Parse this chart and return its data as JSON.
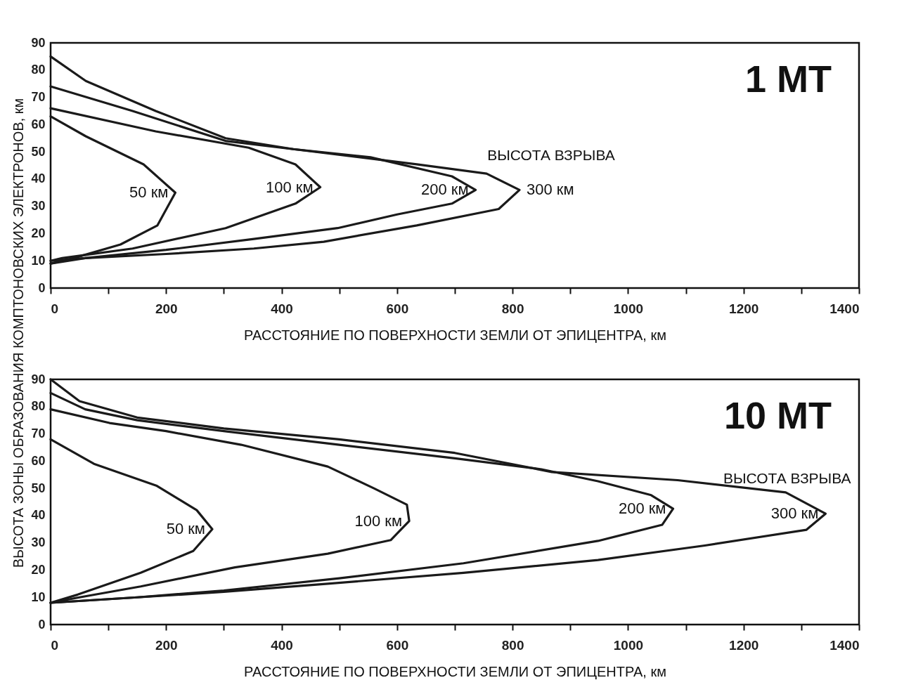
{
  "chart_data": [
    {
      "type": "line",
      "title": "1 МТ",
      "xlabel": "РАССТОЯНИЕ ПО ПОВЕРХНОСТИ ЗЕМЛИ ОТ ЭПИЦЕНТРА, км",
      "ylabel": "ВЫСОТА ЗОНЫ ОБРАЗОВАНИЯ КОМПТОНОВСКИХ ЭЛЕКТРОНОВ, км",
      "xlim": [
        0,
        1400
      ],
      "ylim": [
        0,
        90
      ],
      "xticks": [
        0,
        {
          "value": 100,
          "label": null
        },
        200,
        {
          "value": 300,
          "label": null
        },
        400,
        {
          "value": 500,
          "label": null
        },
        600,
        {
          "value": 700,
          "label": null
        },
        800,
        {
          "value": 900,
          "label": null
        },
        1000,
        {
          "value": 1100,
          "label": null
        },
        1200,
        {
          "value": 1300,
          "label": null
        },
        1400
      ],
      "yticks": [
        0,
        10,
        20,
        30,
        40,
        50,
        60,
        70,
        80,
        90
      ],
      "grid": false,
      "legend": false,
      "marker": "none",
      "line_style": "solid",
      "annotations": [
        "ВЫСОТА ВЗРЫВА"
      ],
      "series": [
        {
          "name": "50 км",
          "color": "#1a1a1a",
          "x": [
            0,
            61,
            161,
            216,
            185,
            121,
            40,
            0
          ],
          "values": [
            63,
            55.7,
            45.4,
            35,
            23,
            16,
            11,
            9
          ]
        },
        {
          "name": "100 км",
          "color": "#1a1a1a",
          "x": [
            0,
            182,
            343,
            424,
            467,
            424,
            303,
            142,
            20,
            0
          ],
          "values": [
            66,
            57.5,
            51.5,
            45.4,
            37,
            31,
            22,
            14.5,
            11,
            10
          ]
        },
        {
          "name": "200 км",
          "color": "#1a1a1a",
          "x": [
            0,
            142,
            303,
            420,
            554,
            695,
            736,
            695,
            600,
            497,
            352,
            200,
            60,
            0
          ],
          "values": [
            74,
            65,
            54,
            51,
            48,
            41,
            36,
            31,
            27,
            22,
            18,
            14,
            11,
            10
          ]
        },
        {
          "name": "300 км",
          "color": "#1a1a1a",
          "x": [
            0,
            61,
            182,
            303,
            420,
            634,
            755,
            812,
            776,
            634,
            473,
            352,
            200,
            60,
            0
          ],
          "values": [
            85,
            76,
            65,
            55,
            51,
            45.4,
            42,
            36,
            29,
            23,
            17,
            14.5,
            12.5,
            11,
            9
          ]
        }
      ]
    },
    {
      "type": "line",
      "title": "10 МТ",
      "xlabel": "РАССТОЯНИЕ ПО ПОВЕРХНОСТИ ЗЕМЛИ ОТ ЭПИЦЕНТРА, км",
      "xlim": [
        0,
        1400
      ],
      "ylim": [
        0,
        90
      ],
      "xticks": [
        0,
        {
          "value": 100,
          "label": null
        },
        200,
        {
          "value": 300,
          "label": null
        },
        400,
        {
          "value": 500,
          "label": null
        },
        600,
        {
          "value": 700,
          "label": null
        },
        800,
        {
          "value": 900,
          "label": null
        },
        1000,
        {
          "value": 1100,
          "label": null
        },
        1200,
        {
          "value": 1300,
          "label": null
        },
        1400
      ],
      "yticks": [
        0,
        10,
        20,
        30,
        40,
        50,
        60,
        70,
        80,
        90
      ],
      "grid": false,
      "legend": false,
      "marker": "none",
      "line_style": "solid",
      "annotations": [
        "ВЫСОТА ВЗРЫВА"
      ],
      "series": [
        {
          "name": "50 км",
          "color": "#1a1a1a",
          "x": [
            0,
            75,
            183,
            253,
            280,
            247,
            156,
            47,
            0
          ],
          "values": [
            68,
            59,
            51,
            42,
            35,
            27,
            19,
            11,
            8
          ]
        },
        {
          "name": "100 км",
          "color": "#1a1a1a",
          "x": [
            0,
            102,
            200,
            330,
            480,
            560,
            617,
            621,
            589,
            480,
            319,
            156,
            50,
            0
          ],
          "values": [
            79,
            74,
            71,
            66,
            58,
            50,
            44,
            38,
            31,
            26,
            21,
            14,
            10,
            8
          ]
        },
        {
          "name": "200 км",
          "color": "#1a1a1a",
          "x": [
            0,
            60,
            150,
            300,
            500,
            700,
            850,
            948,
            1040,
            1078,
            1059,
            948,
            715,
            500,
            300,
            150,
            0
          ],
          "values": [
            85,
            79,
            75,
            71,
            66,
            61,
            57,
            52.6,
            47.5,
            42.5,
            36.6,
            30.7,
            22.5,
            17,
            12.5,
            10,
            8
          ]
        },
        {
          "name": "300 км",
          "color": "#1a1a1a",
          "x": [
            0,
            50,
            150,
            300,
            500,
            700,
            868,
            1086,
            1273,
            1342,
            1309,
            1133,
            948,
            715,
            480,
            300,
            150,
            0
          ],
          "values": [
            90,
            82,
            76,
            72,
            68,
            63,
            56,
            53,
            48.5,
            40.7,
            34.8,
            29,
            23.7,
            19,
            15,
            12,
            10,
            8
          ]
        }
      ]
    }
  ]
}
